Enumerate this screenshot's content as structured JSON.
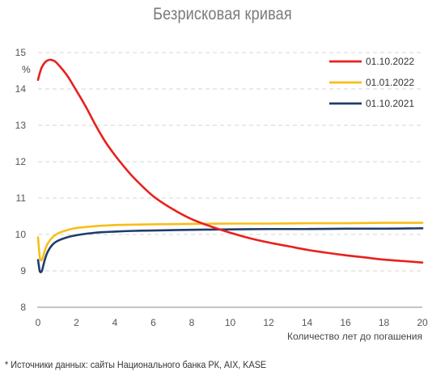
{
  "chart_data": {
    "type": "line",
    "title": "Безрисковая кривая",
    "xlabel": "Количество лет до погашения",
    "ylabel": "%",
    "xlim": [
      0,
      20
    ],
    "ylim": [
      8,
      15
    ],
    "x_ticks": [
      "0",
      "2",
      "4",
      "6",
      "8",
      "10",
      "12",
      "14",
      "16",
      "18",
      "20"
    ],
    "y_ticks": [
      "8",
      "9",
      "10",
      "11",
      "12",
      "13",
      "14",
      "15"
    ],
    "grid": "horizontal-dashed",
    "legend_position": "top-right",
    "series": [
      {
        "name": "01.10.2022",
        "color": "#e8201c",
        "x": [
          0,
          0.1,
          0.2,
          0.4,
          0.6,
          0.8,
          1,
          1.5,
          2,
          2.5,
          3,
          3.5,
          4,
          4.5,
          5,
          6,
          7,
          8,
          9,
          10,
          11,
          12,
          13,
          14,
          15,
          16,
          17,
          18,
          19,
          20
        ],
        "values": [
          14.25,
          14.45,
          14.6,
          14.75,
          14.8,
          14.78,
          14.7,
          14.38,
          13.95,
          13.5,
          13.0,
          12.55,
          12.18,
          11.85,
          11.55,
          11.05,
          10.7,
          10.42,
          10.22,
          10.05,
          9.9,
          9.78,
          9.68,
          9.58,
          9.5,
          9.43,
          9.37,
          9.31,
          9.27,
          9.23
        ]
      },
      {
        "name": "01.01.2022",
        "color": "#f9bd18",
        "x": [
          0,
          0.05,
          0.1,
          0.2,
          0.35,
          0.5,
          0.75,
          1,
          1.5,
          2,
          3,
          4,
          5,
          6,
          8,
          10,
          12,
          14,
          16,
          18,
          20
        ],
        "values": [
          9.92,
          9.6,
          9.35,
          9.3,
          9.55,
          9.75,
          9.92,
          10.02,
          10.12,
          10.18,
          10.23,
          10.26,
          10.27,
          10.28,
          10.29,
          10.3,
          10.3,
          10.31,
          10.31,
          10.32,
          10.32
        ]
      },
      {
        "name": "01.10.2021",
        "color": "#1f3d6c",
        "x": [
          0,
          0.05,
          0.1,
          0.2,
          0.35,
          0.5,
          0.75,
          1,
          1.5,
          2,
          3,
          4,
          5,
          6,
          8,
          10,
          12,
          14,
          16,
          18,
          20
        ],
        "values": [
          9.3,
          9.12,
          8.98,
          9.0,
          9.3,
          9.52,
          9.72,
          9.82,
          9.92,
          9.98,
          10.05,
          10.08,
          10.1,
          10.11,
          10.13,
          10.14,
          10.15,
          10.15,
          10.16,
          10.16,
          10.17
        ]
      }
    ]
  },
  "footnote": "* Источники данных: сайты Национального банка РК, AIX, KASE"
}
